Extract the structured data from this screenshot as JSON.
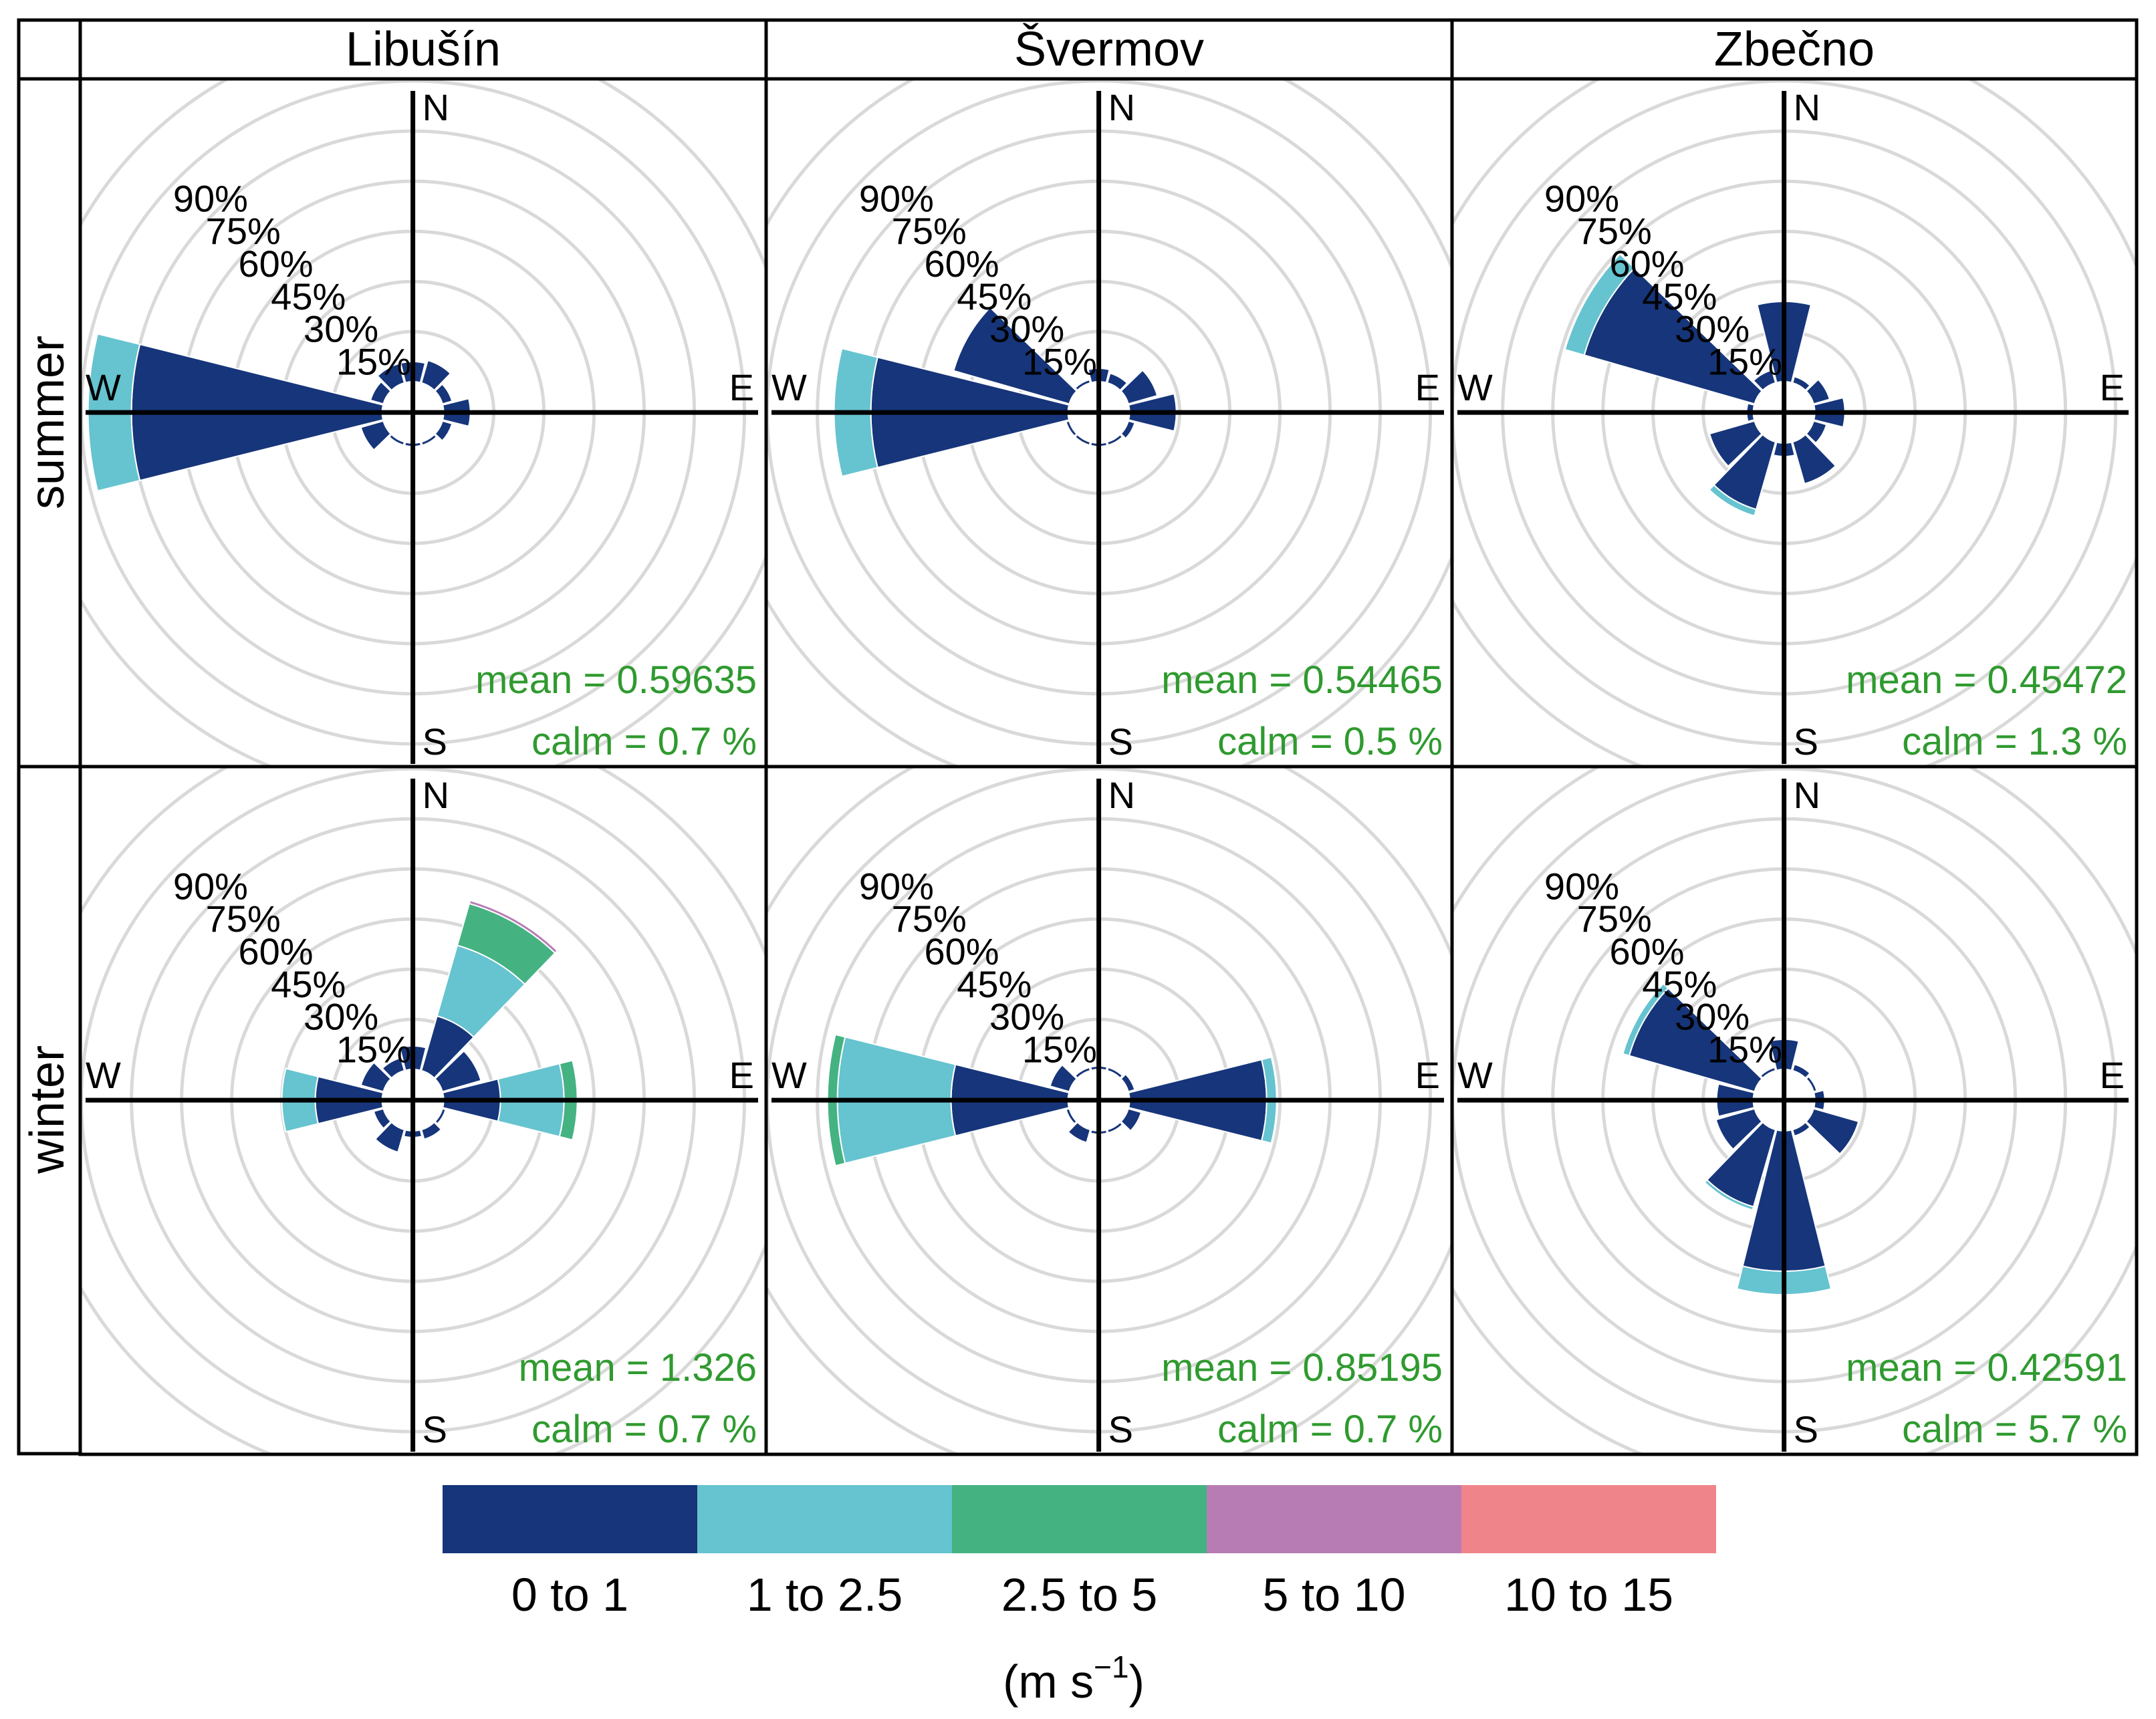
{
  "chart_data": {
    "type": "windrose",
    "columns": [
      "Libušín",
      "Švermov",
      "Zbečno"
    ],
    "rows": [
      "summer",
      "winter"
    ],
    "radial_ticks": [
      "15%",
      "30%",
      "45%",
      "60%",
      "75%",
      "90%"
    ],
    "radial_tick_values": [
      15,
      30,
      45,
      60,
      75,
      90
    ],
    "radial_max": 90,
    "directions": [
      "N",
      "E",
      "S",
      "W"
    ],
    "sector_width_deg": 30,
    "speed_bins": [
      "0 to 1",
      "1 to 2.5",
      "2.5 to 5",
      "5 to 10",
      "10 to 15"
    ],
    "bin_colors": [
      "#16357a",
      "#66c3d0",
      "#45b282",
      "#b87cb5",
      "#ef858b"
    ],
    "legend_unit": "(m s",
    "legend_unit_sup": "−1",
    "legend_unit_close": ")",
    "panels": [
      {
        "column": "Libušín",
        "row": "summer",
        "mean_label": "mean",
        "mean_value": "0.59635",
        "calm_label": "calm",
        "calm_value": "0.7 %",
        "sectors": [
          {
            "dir": 0,
            "values": [
              6
            ]
          },
          {
            "dir": 30,
            "values": [
              7
            ]
          },
          {
            "dir": 60,
            "values": [
              3
            ]
          },
          {
            "dir": 90,
            "values": [
              8
            ]
          },
          {
            "dir": 120,
            "values": [
              3
            ]
          },
          {
            "dir": 150,
            "values": [
              1
            ]
          },
          {
            "dir": 180,
            "values": [
              1
            ]
          },
          {
            "dir": 210,
            "values": [
              1
            ]
          },
          {
            "dir": 240,
            "values": [
              7
            ]
          },
          {
            "dir": 270,
            "values": [
              75,
              13
            ]
          },
          {
            "dir": 300,
            "values": [
              4
            ]
          },
          {
            "dir": 330,
            "values": [
              6
            ]
          }
        ]
      },
      {
        "column": "Švermov",
        "row": "summer",
        "mean_label": "mean",
        "mean_value": "0.54465",
        "calm_label": "calm",
        "calm_value": "0.5 %",
        "sectors": [
          {
            "dir": 0,
            "values": [
              4
            ]
          },
          {
            "dir": 30,
            "values": [
              3
            ]
          },
          {
            "dir": 60,
            "values": [
              9
            ]
          },
          {
            "dir": 90,
            "values": [
              14
            ]
          },
          {
            "dir": 120,
            "values": [
              2
            ]
          },
          {
            "dir": 150,
            "values": [
              1
            ]
          },
          {
            "dir": 180,
            "values": [
              1
            ]
          },
          {
            "dir": 210,
            "values": [
              1
            ]
          },
          {
            "dir": 240,
            "values": [
              1
            ]
          },
          {
            "dir": 270,
            "values": [
              59,
              11
            ]
          },
          {
            "dir": 300,
            "values": [
              36
            ]
          },
          {
            "dir": 330,
            "values": [
              1
            ]
          }
        ]
      },
      {
        "column": "Zbečno",
        "row": "summer",
        "mean_label": "mean",
        "mean_value": "0.45472",
        "calm_label": "calm",
        "calm_value": "1.3 %",
        "sectors": [
          {
            "dir": 0,
            "values": [
              24
            ]
          },
          {
            "dir": 30,
            "values": [
              2
            ]
          },
          {
            "dir": 60,
            "values": [
              5
            ]
          },
          {
            "dir": 90,
            "values": [
              9
            ]
          },
          {
            "dir": 120,
            "values": [
              4
            ]
          },
          {
            "dir": 150,
            "values": [
              13
            ]
          },
          {
            "dir": 180,
            "values": [
              4
            ]
          },
          {
            "dir": 210,
            "values": [
              21,
              2
            ]
          },
          {
            "dir": 240,
            "values": [
              14
            ]
          },
          {
            "dir": 270,
            "values": [
              2
            ]
          },
          {
            "dir": 300,
            "values": [
              53,
              6
            ]
          },
          {
            "dir": 330,
            "values": [
              4
            ]
          }
        ]
      },
      {
        "column": "Libušín",
        "row": "winter",
        "mean_label": "mean",
        "mean_value": "1.326",
        "calm_label": "calm",
        "calm_value": "0.7 %",
        "sectors": [
          {
            "dir": 0,
            "values": [
              7
            ]
          },
          {
            "dir": 30,
            "values": [
              17,
              22,
              13,
              1
            ]
          },
          {
            "dir": 60,
            "values": [
              12
            ]
          },
          {
            "dir": 90,
            "values": [
              17,
              19,
              4
            ]
          },
          {
            "dir": 120,
            "values": [
              1
            ]
          },
          {
            "dir": 150,
            "values": [
              3
            ]
          },
          {
            "dir": 180,
            "values": [
              2
            ]
          },
          {
            "dir": 210,
            "values": [
              7
            ]
          },
          {
            "dir": 240,
            "values": [
              3
            ]
          },
          {
            "dir": 270,
            "values": [
              20,
              10
            ]
          },
          {
            "dir": 300,
            "values": [
              7
            ]
          },
          {
            "dir": 330,
            "values": [
              4
            ]
          }
        ]
      },
      {
        "column": "Švermov",
        "row": "winter",
        "mean_label": "mean",
        "mean_value": "0.85195",
        "calm_label": "calm",
        "calm_value": "0.7 %",
        "sectors": [
          {
            "dir": 0,
            "values": [
              1
            ]
          },
          {
            "dir": 30,
            "values": [
              1
            ]
          },
          {
            "dir": 60,
            "values": [
              2
            ]
          },
          {
            "dir": 90,
            "values": [
              41,
              3
            ]
          },
          {
            "dir": 120,
            "values": [
              4
            ]
          },
          {
            "dir": 150,
            "values": [
              1
            ]
          },
          {
            "dir": 180,
            "values": [
              1
            ]
          },
          {
            "dir": 210,
            "values": [
              4
            ]
          },
          {
            "dir": 240,
            "values": [
              1
            ]
          },
          {
            "dir": 270,
            "values": [
              35,
              34,
              3
            ]
          },
          {
            "dir": 300,
            "values": [
              6
            ]
          },
          {
            "dir": 330,
            "values": [
              1
            ]
          }
        ]
      },
      {
        "column": "Zbečno",
        "row": "winter",
        "mean_label": "mean",
        "mean_value": "0.42591",
        "calm_label": "calm",
        "calm_value": "5.7 %",
        "sectors": [
          {
            "dir": 0,
            "values": [
              9
            ]
          },
          {
            "dir": 30,
            "values": [
              2
            ]
          },
          {
            "dir": 60,
            "values": [
              1
            ]
          },
          {
            "dir": 90,
            "values": [
              3
            ]
          },
          {
            "dir": 120,
            "values": [
              14
            ]
          },
          {
            "dir": 150,
            "values": [
              2
            ]
          },
          {
            "dir": 180,
            "values": [
              42,
              7
            ]
          },
          {
            "dir": 210,
            "values": [
              24,
              1
            ]
          },
          {
            "dir": 240,
            "values": [
              12
            ]
          },
          {
            "dir": 270,
            "values": [
              11
            ]
          },
          {
            "dir": 300,
            "values": [
              39,
              2
            ]
          },
          {
            "dir": 330,
            "values": [
              1
            ]
          }
        ]
      }
    ]
  }
}
